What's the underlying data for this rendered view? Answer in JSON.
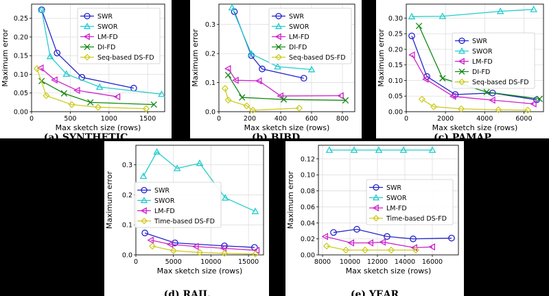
{
  "chart_data": [
    {
      "type": "line",
      "caption": "(a) SYNTHETIC",
      "xlabel": "Max sketch size (rows)",
      "ylabel": "Maximum error",
      "xlim": [
        0,
        1720
      ],
      "ylim": [
        0,
        0.288
      ],
      "xticks": [
        "0",
        "500",
        "1000",
        "1500"
      ],
      "yticks": [
        "0.00",
        "0.05",
        "0.10",
        "0.15",
        "0.20",
        "0.25"
      ],
      "grid": true,
      "legend_position": "top-right",
      "series": [
        {
          "name": "SWR",
          "color": "#2222cc",
          "marker": "circle",
          "x": [
            130,
            330,
            650,
            1320
          ],
          "y": [
            0.273,
            0.157,
            0.092,
            0.063
          ]
        },
        {
          "name": "SWOR",
          "color": "#22cccc",
          "marker": "triangle",
          "x": [
            130,
            240,
            450,
            880,
            1680
          ],
          "y": [
            0.273,
            0.148,
            0.101,
            0.066,
            0.047
          ]
        },
        {
          "name": "LM-FD",
          "color": "#cc22cc",
          "marker": "triangle-left",
          "x": [
            120,
            300,
            590,
            1110
          ],
          "y": [
            0.117,
            0.085,
            0.057,
            0.04
          ]
        },
        {
          "name": "DI-FD",
          "color": "#118811",
          "marker": "x",
          "x": [
            130,
            420,
            760,
            1580
          ],
          "y": [
            0.082,
            0.049,
            0.025,
            0.019
          ]
        },
        {
          "name": "Seq-based DS-FD",
          "color": "#cccc22",
          "marker": "diamond",
          "x": [
            70,
            190,
            520,
            860,
            1480
          ],
          "y": [
            0.115,
            0.043,
            0.019,
            0.012,
            0.008
          ]
        }
      ]
    },
    {
      "type": "line",
      "caption": "(b) BIBD",
      "xlabel": "Max sketch size (rows)",
      "ylabel": "Maximum error",
      "xlim": [
        0,
        880
      ],
      "ylim": [
        0,
        0.37
      ],
      "xticks": [
        "0",
        "200",
        "400",
        "600",
        "800"
      ],
      "yticks": [
        "0.0",
        "0.1",
        "0.2",
        "0.3"
      ],
      "grid": true,
      "legend_position": "top-right",
      "series": [
        {
          "name": "SWR",
          "color": "#2222cc",
          "marker": "circle",
          "x": [
            100,
            210,
            280,
            550
          ],
          "y": [
            0.344,
            0.193,
            0.147,
            0.115
          ]
        },
        {
          "name": "SWOR",
          "color": "#22cccc",
          "marker": "triangle",
          "x": [
            85,
            210,
            380,
            600
          ],
          "y": [
            0.358,
            0.199,
            0.155,
            0.145
          ]
        },
        {
          "name": "LM-FD",
          "color": "#cc22cc",
          "marker": "triangle-left",
          "x": [
            60,
            110,
            260,
            400,
            790
          ],
          "y": [
            0.148,
            0.108,
            0.106,
            0.054,
            0.055
          ]
        },
        {
          "name": "DI-FD",
          "color": "#118811",
          "marker": "x",
          "x": [
            60,
            150,
            420,
            820
          ],
          "y": [
            0.126,
            0.049,
            0.042,
            0.039
          ]
        },
        {
          "name": "Seq-based DS-FD",
          "color": "#cccc22",
          "marker": "diamond",
          "x": [
            40,
            60,
            180,
            220,
            520
          ],
          "y": [
            0.08,
            0.04,
            0.02,
            0.005,
            0.012
          ]
        }
      ]
    },
    {
      "type": "line",
      "caption": "(c) PAMAP",
      "xlabel": "Max sketch size (rows)",
      "ylabel": "Maximum error",
      "xlim": [
        0,
        7000
      ],
      "ylim": [
        0,
        0.345
      ],
      "xticks": [
        "0",
        "2000",
        "4000",
        "6000"
      ],
      "yticks": [
        "0.00",
        "0.05",
        "0.10",
        "0.15",
        "0.20",
        "0.25",
        "0.30"
      ],
      "grid": true,
      "legend_position": "center-right",
      "series": [
        {
          "name": "SWR",
          "color": "#2222cc",
          "marker": "circle",
          "x": [
            280,
            1050,
            2500,
            4400,
            6650
          ],
          "y": [
            0.243,
            0.113,
            0.055,
            0.06,
            0.038
          ]
        },
        {
          "name": "SWOR",
          "color": "#22cccc",
          "marker": "triangle",
          "x": [
            280,
            1850,
            4800,
            6500
          ],
          "y": [
            0.305,
            0.306,
            0.322,
            0.328
          ]
        },
        {
          "name": "LM-FD",
          "color": "#cc22cc",
          "marker": "triangle-left",
          "x": [
            300,
            1000,
            2400,
            4400,
            6500
          ],
          "y": [
            0.182,
            0.104,
            0.049,
            0.037,
            0.025
          ]
        },
        {
          "name": "DI-FD",
          "color": "#118811",
          "marker": "x",
          "x": [
            650,
            1850,
            4100,
            6800
          ],
          "y": [
            0.275,
            0.107,
            0.063,
            0.041
          ]
        },
        {
          "name": "Seq-based DS-FD",
          "color": "#cccc22",
          "marker": "diamond",
          "x": [
            800,
            1400,
            2800,
            4700,
            6200
          ],
          "y": [
            0.04,
            0.016,
            0.009,
            0.006,
            0.005
          ]
        }
      ]
    },
    {
      "type": "line",
      "caption": "(d) RAIL",
      "xlabel": "Max sketch size (rows)",
      "ylabel": "Maximum error",
      "xlim": [
        0,
        17000
      ],
      "ylim": [
        0,
        0.365
      ],
      "xticks": [
        "0",
        "5000",
        "10000",
        "15000"
      ],
      "yticks": [
        "0.0",
        "0.1",
        "0.2",
        "0.3"
      ],
      "grid": true,
      "legend_position": "bottom-right",
      "series": [
        {
          "name": "SWR",
          "color": "#2222cc",
          "marker": "circle",
          "x": [
            1200,
            5200,
            11800,
            15800
          ],
          "y": [
            0.073,
            0.04,
            0.03,
            0.025
          ]
        },
        {
          "name": "SWOR",
          "color": "#22cccc",
          "marker": "triangle",
          "x": [
            1000,
            2800,
            5500,
            8500,
            11900,
            15900
          ],
          "y": [
            0.262,
            0.343,
            0.288,
            0.305,
            0.19,
            0.145
          ]
        },
        {
          "name": "LM-FD",
          "color": "#cc22cc",
          "marker": "triangle-left",
          "x": [
            2000,
            4600,
            8000,
            11700,
            16100
          ],
          "y": [
            0.049,
            0.035,
            0.028,
            0.022,
            0.015
          ]
        },
        {
          "name": "Time-based DS-FD",
          "color": "#cccc22",
          "marker": "diamond",
          "x": [
            2200,
            5000,
            8500,
            11800,
            15900
          ],
          "y": [
            0.029,
            0.014,
            0.008,
            0.005,
            0.003
          ]
        }
      ]
    },
    {
      "type": "line",
      "caption": "(e) YEAR",
      "xlabel": "Max sketch size (rows)",
      "ylabel": "Maximum error",
      "xlim": [
        7700,
        17900
      ],
      "ylim": [
        0,
        0.137
      ],
      "xticks": [
        "8000",
        "10000",
        "12000",
        "14000",
        "16000"
      ],
      "yticks": [
        "0.00",
        "0.02",
        "0.04",
        "0.06",
        "0.08",
        "0.10",
        "0.12"
      ],
      "grid": true,
      "legend_position": "center-right",
      "series": [
        {
          "name": "SWR",
          "color": "#2222cc",
          "marker": "circle",
          "x": [
            8800,
            10500,
            12700,
            14600,
            17400
          ],
          "y": [
            0.028,
            0.032,
            0.023,
            0.02,
            0.021
          ]
        },
        {
          "name": "SWOR",
          "color": "#22cccc",
          "marker": "triangle",
          "x": [
            8500,
            10300,
            12100,
            13900,
            16000
          ],
          "y": [
            0.131,
            0.131,
            0.131,
            0.131,
            0.131
          ]
        },
        {
          "name": "LM-FD",
          "color": "#cc22cc",
          "marker": "triangle-left",
          "x": [
            8200,
            10100,
            11500,
            12400,
            14700,
            16000
          ],
          "y": [
            0.023,
            0.015,
            0.015,
            0.016,
            0.009,
            0.01
          ]
        },
        {
          "name": "Time-based DS-FD",
          "color": "#cccc22",
          "marker": "diamond",
          "x": [
            8300,
            9700,
            11100,
            13000,
            14800
          ],
          "y": [
            0.011,
            0.006,
            0.006,
            0.006,
            0.006
          ]
        }
      ]
    }
  ]
}
